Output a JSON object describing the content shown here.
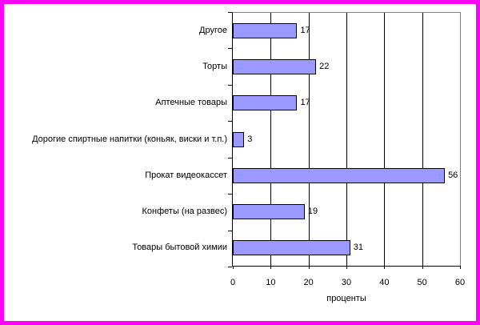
{
  "frame": {
    "border_color": "#ff00ff",
    "background": "#ffffff"
  },
  "chart_data": {
    "type": "bar",
    "orientation": "horizontal",
    "categories": [
      "Другое",
      "Торты",
      "Аптечные товары",
      "Дорогие спиртные напитки (коньяк, виски и т.п.)",
      "Прокат видеокассет",
      "Конфеты (на развес)",
      "Товары бытовой химии"
    ],
    "values": [
      17,
      22,
      17,
      3,
      56,
      19,
      31
    ],
    "data_labels": [
      17,
      22,
      17,
      3,
      56,
      19,
      31
    ],
    "xlabel": "проценты",
    "xlim": [
      0,
      60
    ],
    "xticks": [
      0,
      10,
      20,
      30,
      40,
      50,
      60
    ],
    "grid": true,
    "legend": false,
    "bar_color": "#9999ff",
    "bar_border_color": "#000000",
    "gridline_color": "#000000",
    "axis_color": "#000000",
    "plot_border_color": "#808080",
    "text_color": "#000000"
  }
}
